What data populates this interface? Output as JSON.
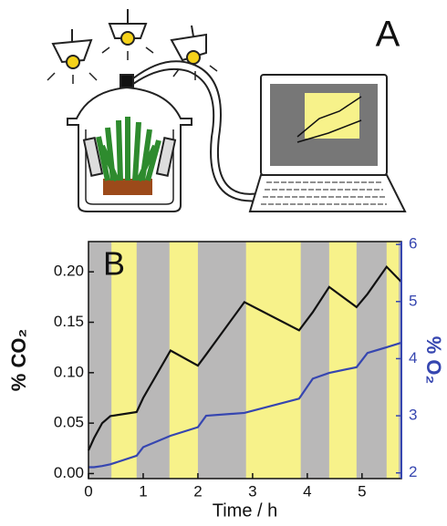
{
  "diagram": {
    "label": "A"
  },
  "chart_data": {
    "type": "line",
    "panel_label": "B",
    "x_label": "Time / h",
    "y_label": "% CO₂",
    "y2_label": "% O₂",
    "x": [
      0,
      0.1,
      0.25,
      0.4,
      0.88,
      1.0,
      1.5,
      2.0,
      2.15,
      2.85,
      3.85,
      4.1,
      4.4,
      4.9,
      5.1,
      5.45,
      5.72
    ],
    "series": [
      {
        "name": "CO₂",
        "color": "#111111",
        "values": [
          0.023,
          0.035,
          0.05,
          0.057,
          0.061,
          0.075,
          0.122,
          0.107,
          0.118,
          0.17,
          0.142,
          0.16,
          0.185,
          0.165,
          0.178,
          0.205,
          0.19
        ]
      },
      {
        "name": "O₂",
        "color": "#3646b0",
        "axis": "y2",
        "values": [
          2.1,
          2.1,
          2.12,
          2.15,
          2.3,
          2.45,
          2.65,
          2.8,
          3.0,
          3.05,
          3.3,
          3.65,
          3.75,
          3.85,
          4.1,
          4.2,
          4.28
        ]
      }
    ],
    "light_periods": [
      [
        0.42,
        0.88
      ],
      [
        1.48,
        2.0
      ],
      [
        2.88,
        3.88
      ],
      [
        4.4,
        4.9
      ],
      [
        5.45,
        5.67
      ]
    ],
    "light_color": "#f7f28a",
    "dark_color": "#b9b8b8",
    "xlim": [
      0,
      5.72
    ],
    "xticks": [
      0,
      1,
      2,
      3,
      4,
      5
    ],
    "ylim": [
      -0.005,
      0.23
    ],
    "yticks": [
      {
        "value": 0,
        "label": "0.00"
      },
      0.05,
      {
        "value": 0.1,
        "label": "0.10"
      },
      0.15,
      {
        "value": 0.2,
        "label": "0.20"
      }
    ],
    "y2lim": [
      1.9,
      6.05
    ],
    "y2ticks": [
      2,
      3,
      4,
      5,
      6
    ],
    "y2_color": "#3646b0"
  }
}
